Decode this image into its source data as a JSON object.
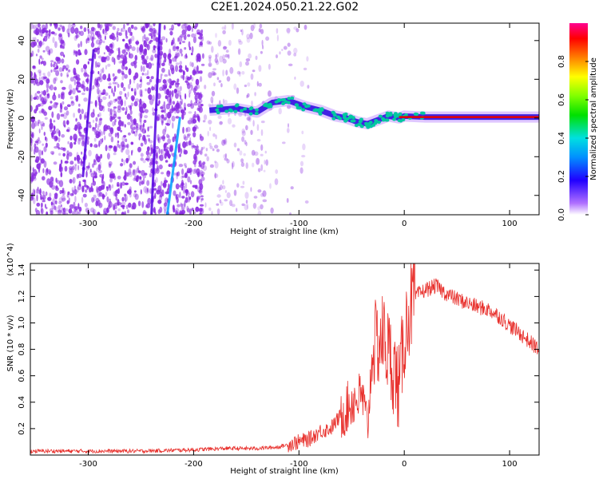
{
  "title": "C2E1.2024.050.21.22.G02",
  "chart_data": [
    {
      "type": "heatmap",
      "xlabel": "Height of straight line (km)",
      "ylabel": "Frequency (Hz)",
      "xlim": [
        -355,
        128
      ],
      "ylim": [
        -50,
        49
      ],
      "xticks": [
        -300,
        -200,
        -100,
        0,
        100
      ],
      "yticks": [
        -40,
        -20,
        0,
        20,
        40
      ],
      "colorbar": {
        "label": "Normalized spectral amplitude",
        "range": [
          0,
          1
        ],
        "ticks": [
          "0.0",
          "0.2",
          "0.4",
          "0.6",
          "0.8"
        ]
      },
      "colors": {
        "noise": "#8a2be2",
        "ridge": "#00c8a0",
        "carrier": "#e60000"
      },
      "carrier_track": {
        "x": [
          -185,
          -160,
          -140,
          -125,
          -110,
          -95,
          -80,
          -65,
          -55,
          -45,
          -35,
          -25,
          -15,
          -5,
          0,
          20,
          60,
          128
        ],
        "y": [
          4,
          5,
          3,
          8,
          9,
          6,
          4,
          1,
          0,
          -2,
          -3,
          -1,
          1,
          0,
          1,
          0.5,
          0.5,
          0.5
        ]
      },
      "streaks": [
        {
          "x": [
            -305,
            -295
          ],
          "y": [
            -30,
            35
          ]
        },
        {
          "x": [
            -225,
            -213
          ],
          "y": [
            -50,
            0
          ]
        },
        {
          "x": [
            -240,
            -232
          ],
          "y": [
            -50,
            49
          ]
        }
      ]
    },
    {
      "type": "line",
      "xlabel": "Height of straight line (km)",
      "ylabel": "SNR (10 * v/v)",
      "y_multiplier": "(x10^4)",
      "xlim": [
        -355,
        128
      ],
      "ylim": [
        0,
        1.45
      ],
      "xticks": [
        -300,
        -200,
        -100,
        0,
        100
      ],
      "yticks": [
        0.2,
        0.4,
        0.6,
        0.8,
        1.0,
        1.2,
        1.4
      ],
      "color": "#e8302c",
      "series": [
        {
          "x": [
            -355,
            -300,
            -250,
            -200,
            -170,
            -140,
            -120,
            -100,
            -90,
            -80,
            -70,
            -60,
            -50,
            -40,
            -35,
            -30,
            -20,
            -10,
            -5,
            0,
            5,
            10,
            20,
            30,
            40,
            50,
            60,
            70,
            80,
            90,
            100,
            110,
            120,
            128
          ],
          "y": [
            0.03,
            0.03,
            0.03,
            0.04,
            0.05,
            0.05,
            0.06,
            0.1,
            0.12,
            0.18,
            0.2,
            0.3,
            0.4,
            0.45,
            0.2,
            0.8,
            0.9,
            0.65,
            0.5,
            0.9,
            1.1,
            1.2,
            1.25,
            1.28,
            1.22,
            1.18,
            1.15,
            1.12,
            1.1,
            1.05,
            0.98,
            0.92,
            0.85,
            0.8
          ]
        }
      ]
    }
  ]
}
